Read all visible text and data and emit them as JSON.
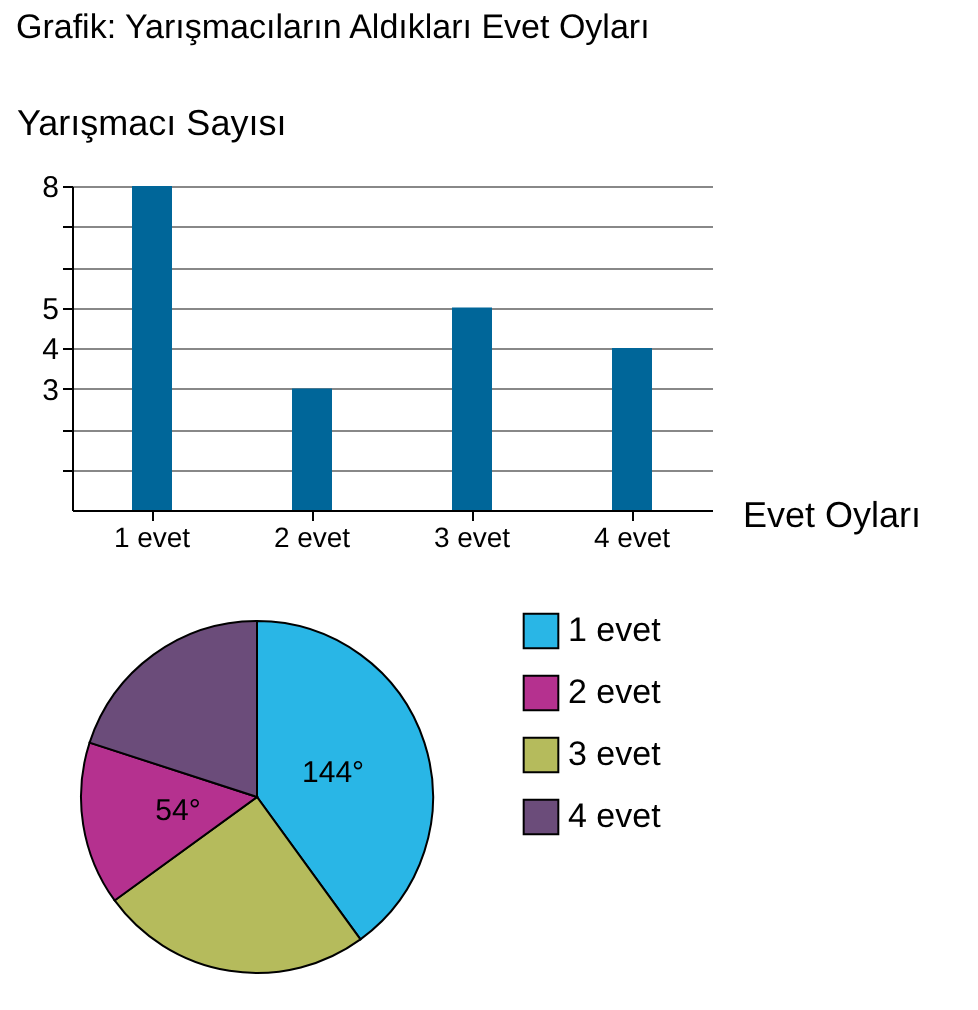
{
  "chart_data": [
    {
      "type": "bar",
      "title": "Grafik: Yarışmacıların Aldıkları Evet Oyları",
      "ylabel": "Yarışmacı Sayısı",
      "xlabel": "Evet Oyları",
      "categories": [
        "1 evet",
        "2 evet",
        "3 evet",
        "4 evet"
      ],
      "values": [
        8,
        3,
        5,
        4
      ],
      "color": "#006699",
      "ylim": [
        0,
        8
      ],
      "yticks": [
        {
          "value": 1,
          "label": null
        },
        {
          "value": 2,
          "label": null
        },
        3,
        4,
        5,
        {
          "value": 6,
          "label": null
        },
        {
          "value": 7,
          "label": null
        },
        8
      ],
      "grid": "y"
    },
    {
      "type": "pie",
      "categories": [
        "1 evet",
        "3 evet",
        "2 evet",
        "4 evet"
      ],
      "values": [
        144,
        90,
        54,
        72
      ],
      "colors": [
        "#29b6e6",
        "#b5bb5c",
        "#b5318f",
        "#6b4c7a"
      ],
      "value_labels": [
        "144°",
        null,
        "54°",
        null
      ],
      "legend": "right"
    }
  ]
}
